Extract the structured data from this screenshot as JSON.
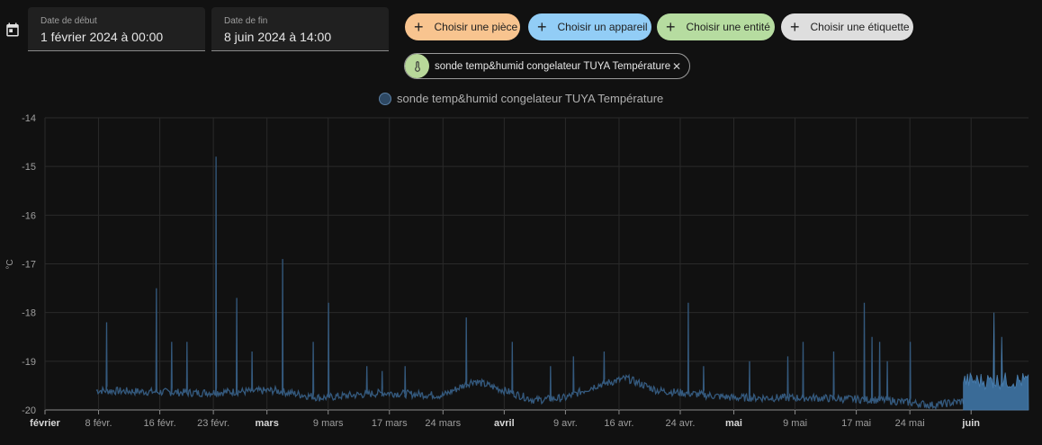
{
  "date_range": {
    "start_label": "Date de début",
    "start_value": "1 février 2024 à 00:00",
    "end_label": "Date de fin",
    "end_value": "8 juin 2024 à 14:00"
  },
  "target_chips": [
    {
      "label": "Choisir une pièce",
      "color": "#f8c48f"
    },
    {
      "label": "Choisir un appareil",
      "color": "#92cdf6"
    },
    {
      "label": "Choisir une entité",
      "color": "#b6dca0"
    },
    {
      "label": "Choisir une étiquette",
      "color": "#dedede"
    }
  ],
  "selected_entity": {
    "label": "sonde temp&humid congelateur TUYA Température",
    "icon": "thermometer-icon"
  },
  "chart_data": {
    "type": "line",
    "title": "",
    "ylabel": "°C",
    "ylim": [
      -20,
      -14
    ],
    "yticks": [
      -14,
      -15,
      -16,
      -17,
      -18,
      -19,
      -20
    ],
    "xticks": [
      {
        "label": "février",
        "day": 0,
        "bold": true
      },
      {
        "label": "8 févr.",
        "day": 7,
        "bold": false
      },
      {
        "label": "16 févr.",
        "day": 15,
        "bold": false
      },
      {
        "label": "23 févr.",
        "day": 22,
        "bold": false
      },
      {
        "label": "mars",
        "day": 29,
        "bold": true
      },
      {
        "label": "9 mars",
        "day": 37,
        "bold": false
      },
      {
        "label": "17 mars",
        "day": 45,
        "bold": false
      },
      {
        "label": "24 mars",
        "day": 52,
        "bold": false
      },
      {
        "label": "avril",
        "day": 60,
        "bold": true
      },
      {
        "label": "9 avr.",
        "day": 68,
        "bold": false
      },
      {
        "label": "16 avr.",
        "day": 75,
        "bold": false
      },
      {
        "label": "24 avr.",
        "day": 83,
        "bold": false
      },
      {
        "label": "mai",
        "day": 90,
        "bold": true
      },
      {
        "label": "9 mai",
        "day": 98,
        "bold": false
      },
      {
        "label": "17 mai",
        "day": 106,
        "bold": false
      },
      {
        "label": "24 mai",
        "day": 113,
        "bold": false
      },
      {
        "label": "juin",
        "day": 121,
        "bold": true
      }
    ],
    "grid": true,
    "series": [
      {
        "name": "sonde temp&humid congelateur TUYA Température",
        "color": "#34597d",
        "start_day": 6.7,
        "end_day": 128.5,
        "baseline": [
          [
            6.7,
            -19.6
          ],
          [
            20,
            -19.65
          ],
          [
            30,
            -19.6
          ],
          [
            36,
            -19.75
          ],
          [
            44,
            -19.65
          ],
          [
            52,
            -19.7
          ],
          [
            56,
            -19.4
          ],
          [
            60,
            -19.6
          ],
          [
            64,
            -19.8
          ],
          [
            68,
            -19.75
          ],
          [
            72,
            -19.5
          ],
          [
            76,
            -19.35
          ],
          [
            80,
            -19.6
          ],
          [
            90,
            -19.75
          ],
          [
            100,
            -19.75
          ],
          [
            110,
            -19.8
          ],
          [
            116,
            -19.9
          ],
          [
            121,
            -19.8
          ],
          [
            128.5,
            -19.75
          ]
        ],
        "spikes": [
          [
            8,
            -18.2
          ],
          [
            14.5,
            -17.5
          ],
          [
            16.5,
            -18.6
          ],
          [
            18.5,
            -18.6
          ],
          [
            22.3,
            -14.8
          ],
          [
            25,
            -17.7
          ],
          [
            27,
            -18.8
          ],
          [
            31,
            -16.9
          ],
          [
            35,
            -18.6
          ],
          [
            37,
            -17.8
          ],
          [
            42,
            -19.1
          ],
          [
            44,
            -19.2
          ],
          [
            47,
            -19.1
          ],
          [
            55,
            -18.1
          ],
          [
            61,
            -18.6
          ],
          [
            66,
            -19.1
          ],
          [
            69,
            -18.9
          ],
          [
            73,
            -18.8
          ],
          [
            84,
            -17.8
          ],
          [
            86,
            -19.1
          ],
          [
            92,
            -19.0
          ],
          [
            97,
            -18.9
          ],
          [
            99,
            -18.6
          ],
          [
            103,
            -18.8
          ],
          [
            107,
            -17.8
          ],
          [
            108,
            -18.5
          ],
          [
            109,
            -18.6
          ],
          [
            110,
            -19.0
          ],
          [
            113,
            -18.6
          ],
          [
            124,
            -18.0
          ],
          [
            125,
            -18.5
          ]
        ],
        "dense_band": {
          "from_day": 120,
          "to_day": 128.5,
          "low": -20.0,
          "high": -19.4
        }
      }
    ]
  }
}
